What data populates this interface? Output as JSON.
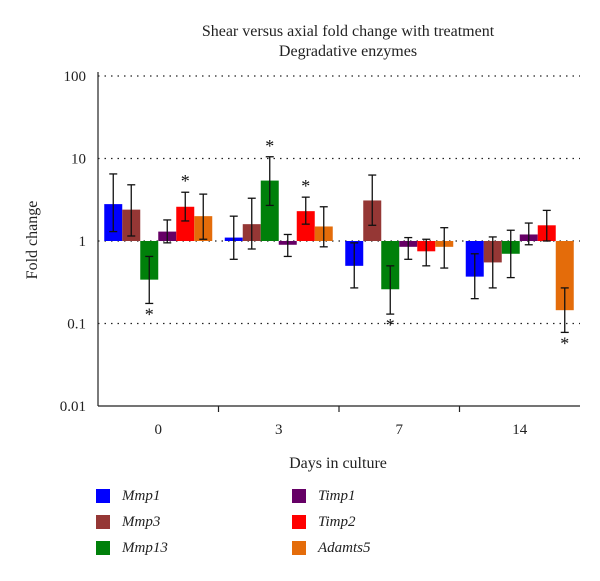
{
  "chart_data": {
    "type": "bar",
    "title": "Shear versus axial fold change with treatment",
    "subtitle": "Degradative enzymes",
    "xlabel": "Days in culture",
    "ylabel": "Fold change",
    "yscale": "log",
    "ylim": [
      0.01,
      100
    ],
    "baseline": 1,
    "y_ticks": [
      100,
      10,
      1,
      0.1,
      0.01
    ],
    "y_tick_labels": [
      "100",
      "10",
      "1",
      "0.1",
      "0.01"
    ],
    "grid": "horizontal dotted",
    "legend_position": "bottom",
    "categories": [
      "0",
      "3",
      "7",
      "14"
    ],
    "series": [
      {
        "name": "Mmp1",
        "color": "#0000ff",
        "values": [
          2.8,
          1.1,
          0.5,
          0.37
        ],
        "err_low": [
          1.3,
          0.6,
          0.27,
          0.2
        ],
        "err_high": [
          6.5,
          2.0,
          0.95,
          0.7
        ]
      },
      {
        "name": "Mmp3",
        "color": "#953735",
        "values": [
          2.4,
          1.6,
          3.1,
          0.55
        ],
        "err_low": [
          1.15,
          0.8,
          1.55,
          0.27
        ],
        "err_high": [
          4.8,
          3.3,
          6.3,
          1.12
        ]
      },
      {
        "name": "Mmp13",
        "color": "#00800a",
        "values": [
          0.34,
          5.4,
          0.26,
          0.7
        ],
        "err_low": [
          0.175,
          2.7,
          0.13,
          0.36
        ],
        "err_high": [
          0.65,
          10.5,
          0.5,
          1.35
        ]
      },
      {
        "name": "Timp1",
        "color": "#660066",
        "values": [
          1.3,
          0.9,
          0.85,
          1.2
        ],
        "err_low": [
          0.95,
          0.65,
          0.6,
          0.9
        ],
        "err_high": [
          1.8,
          1.2,
          1.1,
          1.65
        ]
      },
      {
        "name": "Timp2",
        "color": "#ff0000",
        "values": [
          2.6,
          2.3,
          0.75,
          1.55
        ],
        "err_low": [
          1.75,
          1.6,
          0.5,
          1.0
        ],
        "err_high": [
          3.9,
          3.4,
          1.05,
          2.35
        ]
      },
      {
        "name": "Adamts5",
        "color": "#e46c0a",
        "values": [
          2.0,
          1.5,
          0.85,
          0.145
        ],
        "err_low": [
          1.05,
          0.85,
          0.47,
          0.078
        ],
        "err_high": [
          3.7,
          2.6,
          1.45,
          0.27
        ]
      }
    ],
    "annotations": [
      {
        "text": "*",
        "category": "0",
        "series": "Mmp13",
        "position": "below"
      },
      {
        "text": "*",
        "category": "0",
        "series": "Timp2",
        "position": "above"
      },
      {
        "text": "*",
        "category": "3",
        "series": "Mmp13",
        "position": "above"
      },
      {
        "text": "*",
        "category": "3",
        "series": "Timp2",
        "position": "above"
      },
      {
        "text": "*",
        "category": "7",
        "series": "Mmp13",
        "position": "below"
      },
      {
        "text": "*",
        "category": "14",
        "series": "Adamts5",
        "position": "below"
      }
    ]
  }
}
